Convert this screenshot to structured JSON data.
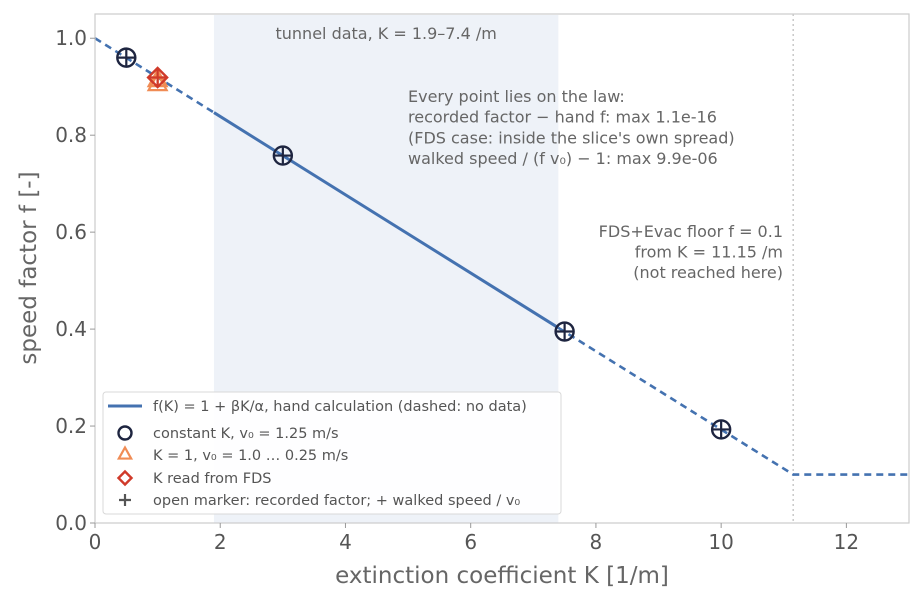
{
  "chart_data": {
    "type": "line",
    "xlabel": "extinction coefficient K [1/m]",
    "ylabel": "speed factor f [-]",
    "xlim": [
      0,
      13
    ],
    "ylim": [
      0,
      1.05
    ],
    "x_ticks": [
      "0",
      "2",
      "4",
      "6",
      "8",
      "10",
      "12"
    ],
    "y_ticks": [
      "0.0",
      "0.2",
      "0.4",
      "0.6",
      "0.8",
      "1.0"
    ],
    "grid": false,
    "legend_position": "lower-left",
    "shaded_band": {
      "x_range": [
        1.9,
        7.4
      ],
      "label": "tunnel data, K = 1.9–7.4 /m"
    },
    "floor_line": {
      "x": 11.15,
      "f": 0.1
    },
    "law": {
      "name": "f(K) = 1 + βK/α, hand calculation (dashed: no data)",
      "color": "#4472b0",
      "solid_range": [
        1.9,
        7.4
      ],
      "points": [
        [
          0,
          1.0
        ],
        [
          11.15,
          0.1
        ],
        [
          13,
          0.1
        ]
      ]
    },
    "series": [
      {
        "name": "constant K, v₀ = 1.25 m/s",
        "marker": "circle",
        "color": "#1e2540",
        "x": [
          0.5,
          3,
          7.5,
          10
        ],
        "y": [
          0.96,
          0.758,
          0.395,
          0.193
        ]
      },
      {
        "name": "K = 1, v₀ = 1.0 … 0.25 m/s",
        "marker": "triangle",
        "color": "#f08c55",
        "x": [
          1,
          1
        ],
        "y": [
          0.919,
          0.919
        ]
      },
      {
        "name": "K read from FDS",
        "marker": "diamond",
        "color": "#d03a2a",
        "x": [
          1
        ],
        "y": [
          0.919
        ]
      }
    ],
    "legend_extra": "open marker: recorded factor;  + walked speed / v₀",
    "annotations": {
      "top_text": [
        "Every point lies on the law:",
        "recorded factor − hand f:  max 1.1e-16",
        "(FDS case: inside the slice's own spread)",
        "walked speed / (f v₀) − 1:  max 9.9e-06"
      ],
      "floor_text": [
        "FDS+Evac floor f = 0.1",
        "from K = 11.15 /m",
        "(not reached here)"
      ]
    }
  }
}
